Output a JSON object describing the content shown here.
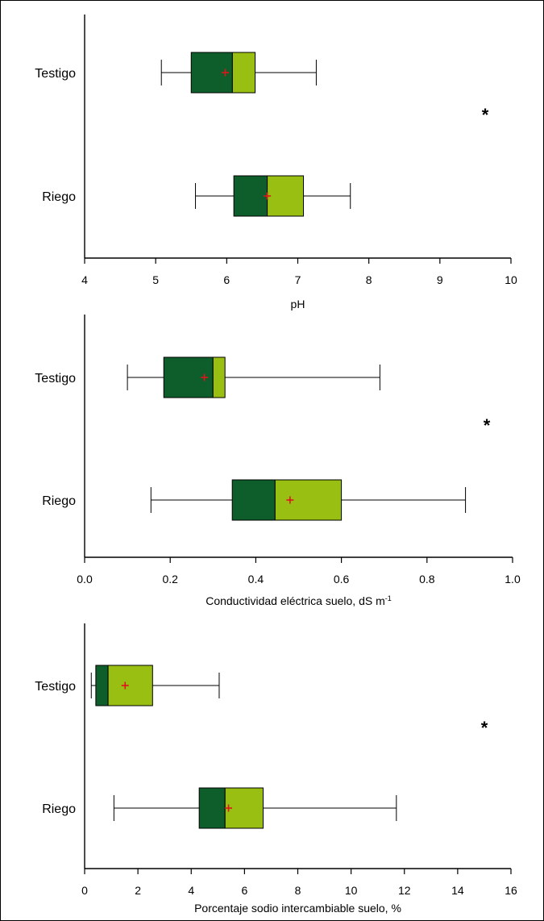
{
  "colors": {
    "q1_box": "#0d5e2b",
    "q3_box": "#98bf12",
    "mean_marker": "#e0141a",
    "axis": "#000000",
    "frame": "#000000"
  },
  "chart_data": [
    {
      "type": "boxplot",
      "orientation": "horizontal",
      "xlabel": "pH",
      "xlim": [
        4,
        10
      ],
      "xticks": [
        4,
        5,
        6,
        7,
        8,
        9,
        10
      ],
      "xtick_labels": [
        "4",
        "5",
        "6",
        "7",
        "8",
        "9",
        "10"
      ],
      "categories": [
        "Testigo",
        "Riego"
      ],
      "boxes": [
        {
          "label": "Testigo",
          "min": 5.08,
          "q1": 5.5,
          "median": 6.08,
          "q3": 6.4,
          "max": 7.26,
          "mean": 5.98
        },
        {
          "label": "Riego",
          "min": 5.56,
          "q1": 6.1,
          "median": 6.57,
          "q3": 7.08,
          "max": 7.74,
          "mean": 6.57
        }
      ],
      "annotation": "*"
    },
    {
      "type": "boxplot",
      "orientation": "horizontal",
      "xlabel": "Conductividad eléctrica suelo, dS m",
      "xlabel_sup": "-1",
      "xlim": [
        0,
        1
      ],
      "xticks": [
        0,
        0.2,
        0.4,
        0.6,
        0.8,
        1
      ],
      "xtick_labels": [
        "0.0",
        "0.2",
        "0.4",
        "0.6",
        "0.8",
        "1.0"
      ],
      "categories": [
        "Testigo",
        "Riego"
      ],
      "boxes": [
        {
          "label": "Testigo",
          "min": 0.1,
          "q1": 0.185,
          "median": 0.3,
          "q3": 0.328,
          "max": 0.69,
          "mean": 0.28
        },
        {
          "label": "Riego",
          "min": 0.155,
          "q1": 0.345,
          "median": 0.445,
          "q3": 0.6,
          "max": 0.89,
          "mean": 0.48
        }
      ],
      "annotation": "*"
    },
    {
      "type": "boxplot",
      "orientation": "horizontal",
      "xlabel": "Porcentaje sodio intercambiable suelo, %",
      "xlim": [
        0,
        16
      ],
      "xticks": [
        0,
        2,
        4,
        6,
        8,
        10,
        12,
        14,
        16
      ],
      "xtick_labels": [
        "0",
        "2",
        "4",
        "6",
        "8",
        "10",
        "12",
        "14",
        "16"
      ],
      "categories": [
        "Testigo",
        "Riego"
      ],
      "boxes": [
        {
          "label": "Testigo",
          "min": 0.25,
          "q1": 0.42,
          "median": 0.88,
          "q3": 2.55,
          "max": 5.05,
          "mean": 1.52
        },
        {
          "label": "Riego",
          "min": 1.1,
          "q1": 4.3,
          "median": 5.27,
          "q3": 6.7,
          "max": 11.7,
          "mean": 5.4
        }
      ],
      "annotation": "*"
    }
  ]
}
